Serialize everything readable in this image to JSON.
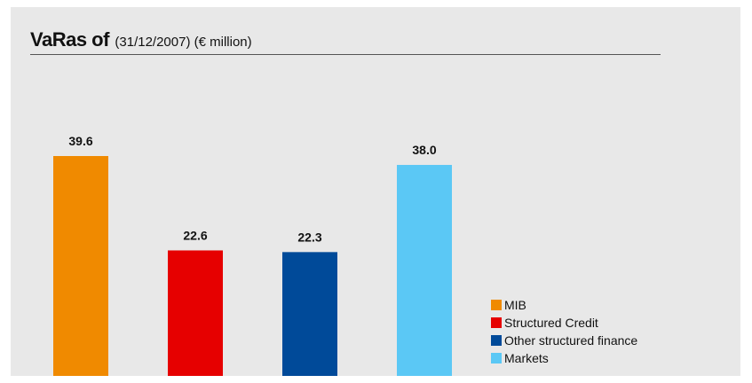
{
  "header": {
    "title_bold": "VaRas of",
    "title_sub": "(31/12/2007) (€ million)"
  },
  "chart_data": {
    "type": "bar",
    "categories": [
      "MIB",
      "Structured Credit",
      "Other structured finance",
      "Markets"
    ],
    "values": [
      39.6,
      22.6,
      22.3,
      38.0
    ],
    "value_labels": [
      "39.6",
      "22.6",
      "22.3",
      "38.0"
    ],
    "colors": [
      "#f08a00",
      "#e60000",
      "#004a99",
      "#5bc8f5"
    ],
    "title": "VaRas of (31/12/2007) (€ million)",
    "xlabel": "",
    "ylabel": "",
    "ylim": [
      0,
      39.6
    ],
    "grid": false,
    "legend_position": "bottom-right"
  }
}
